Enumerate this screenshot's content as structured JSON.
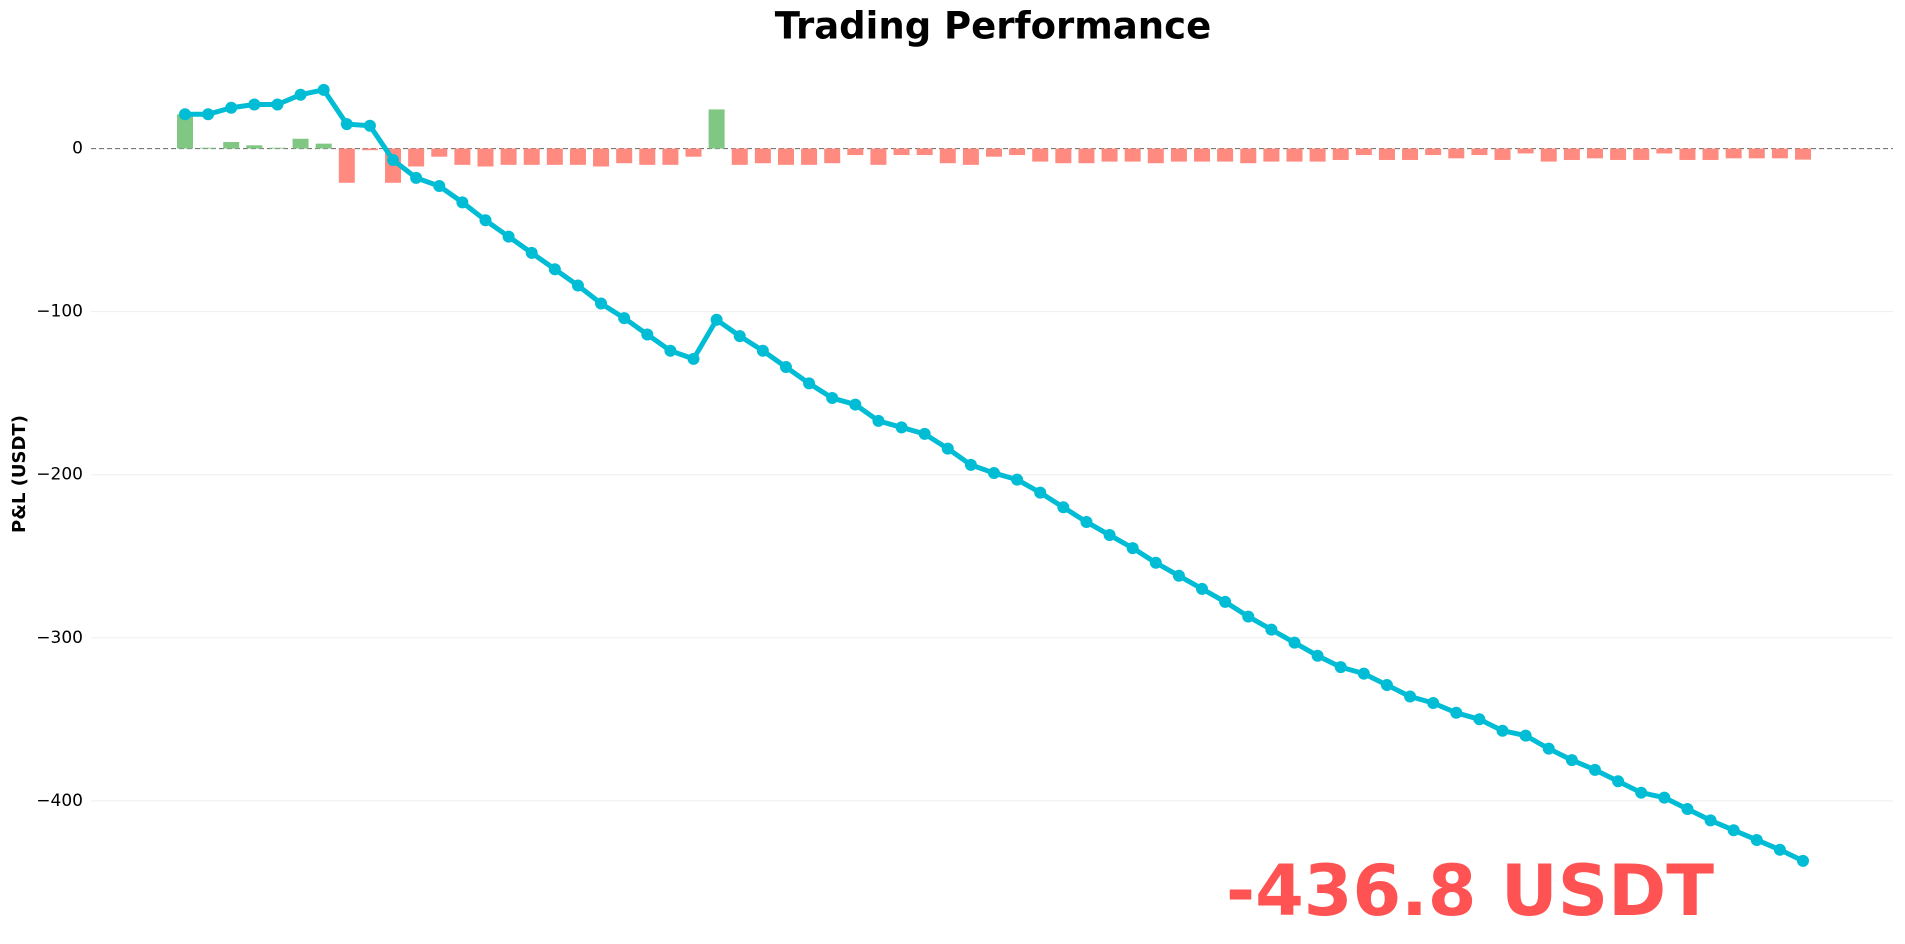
{
  "chart_data": {
    "type": "combo",
    "title": "Trading Performance",
    "y_label": "P&L (USDT)",
    "annotation": "-436.8 USDT",
    "annotation_color": "#ff5252",
    "ylim": [
      -470,
      50
    ],
    "yticks": [
      0,
      {
        "value": -100,
        "label": "−100"
      },
      {
        "value": -200,
        "label": "−200"
      },
      {
        "value": -300,
        "label": "−300"
      },
      {
        "value": -400,
        "label": "−400"
      }
    ],
    "grid": true,
    "positive_color": "#81c784",
    "negative_color": "#ff8a80",
    "line_color": "#00bcd4",
    "bar_values": [
      21,
      0.5,
      4,
      2,
      0.5,
      6,
      3,
      -21,
      -1,
      -21,
      -11,
      -5,
      -10,
      -11,
      -10,
      -10,
      -10,
      -10,
      -11,
      -9,
      -10,
      -10,
      -5,
      24,
      -10,
      -9,
      -10,
      -10,
      -9,
      -4,
      -10,
      -4,
      -4,
      -9,
      -10,
      -5,
      -4,
      -8,
      -9,
      -9,
      -8,
      -8,
      -9,
      -8,
      -8,
      -8,
      -9,
      -8,
      -8,
      -8,
      -7,
      -4,
      -7,
      -7,
      -4,
      -6,
      -4,
      -7,
      -3,
      -8,
      -7,
      -6,
      -7,
      -7,
      -3,
      -7,
      -7,
      -6,
      -6,
      -6,
      -6.8
    ],
    "line_values": [
      21,
      21,
      25,
      27,
      27,
      33,
      36,
      15,
      14,
      -7,
      -18,
      -23,
      -33,
      -44,
      -54,
      -64,
      -74,
      -84,
      -95,
      -104,
      -114,
      -124,
      -129,
      -105,
      -115,
      -124,
      -134,
      -144,
      -153,
      -157,
      -167,
      -171,
      -175,
      -184,
      -194,
      -199,
      -203,
      -211,
      -220,
      -229,
      -237,
      -245,
      -254,
      -262,
      -270,
      -278,
      -287,
      -295,
      -303,
      -311,
      -318,
      -322,
      -329,
      -336,
      -340,
      -346,
      -350,
      -357,
      -360,
      -368,
      -375,
      -381,
      -388,
      -395,
      -398,
      -405,
      -412,
      -418,
      -424,
      -430,
      -436.8
    ]
  }
}
